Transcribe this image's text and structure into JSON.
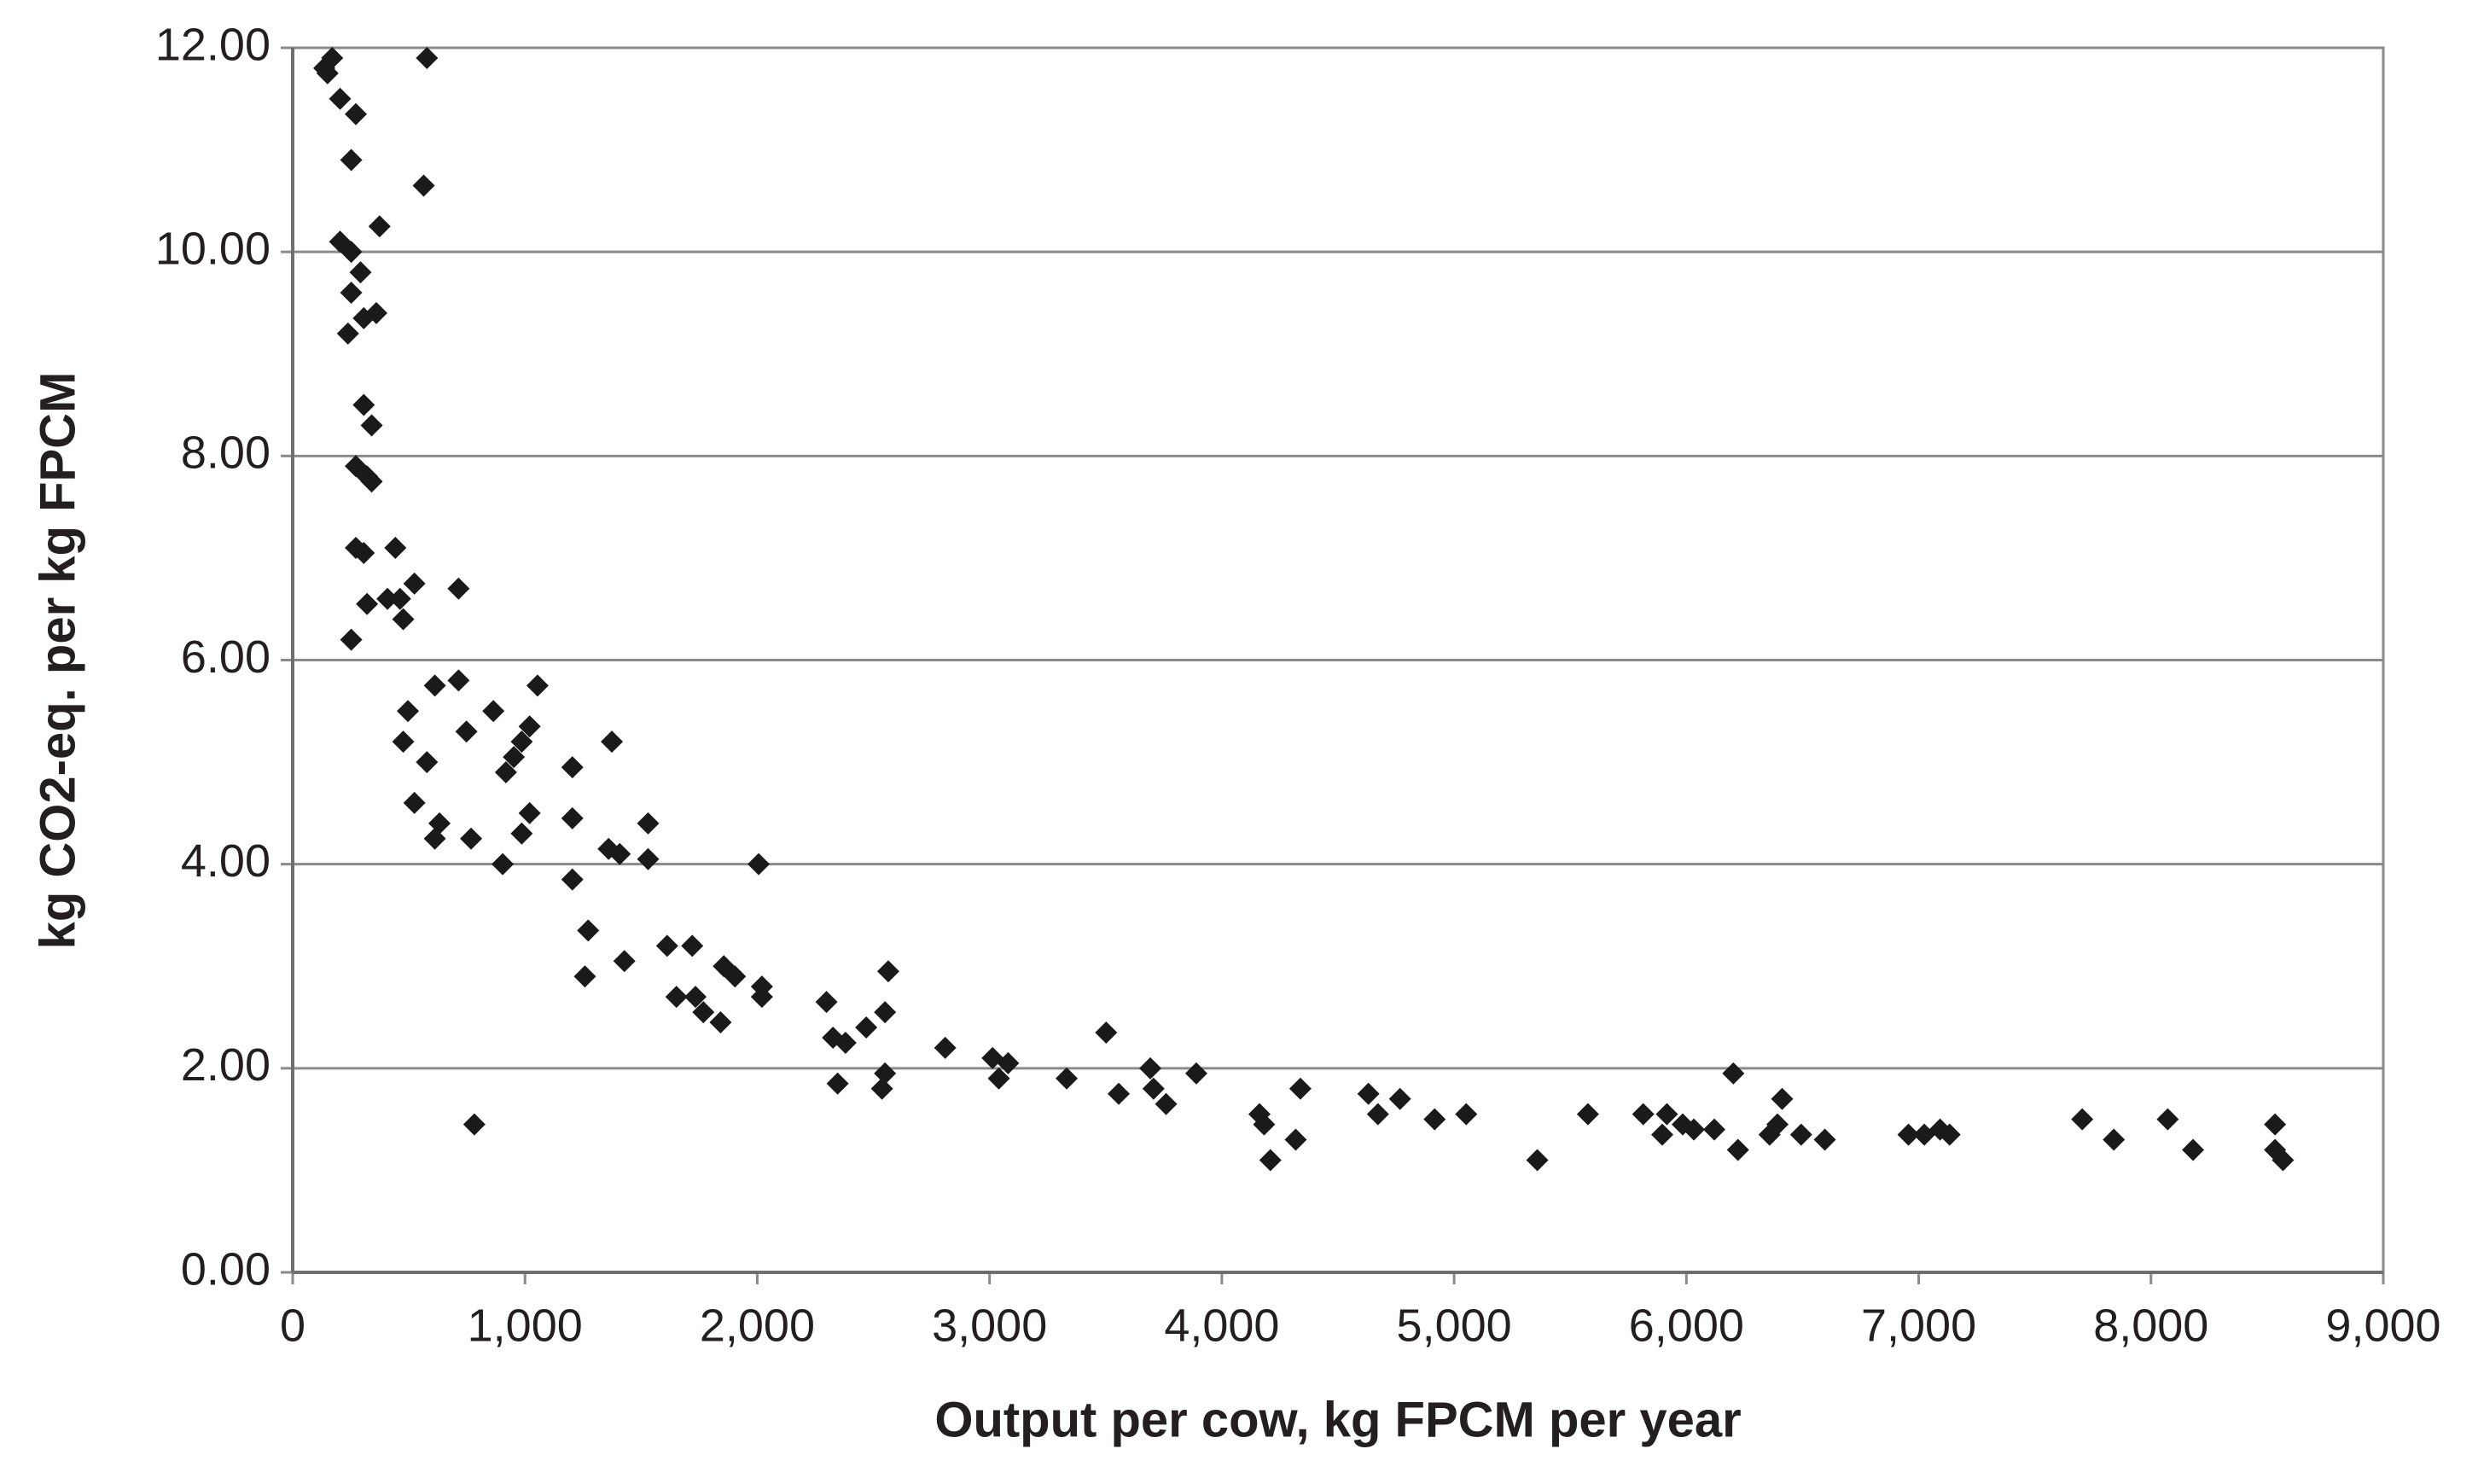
{
  "chart_data": {
    "type": "scatter",
    "x_label": "Output per cow, kg FPCM per year",
    "y_label": "kg CO2-eq. per kg FPCM",
    "xlim": [
      0,
      9000
    ],
    "xticks": [
      0,
      {
        "value": 1000,
        "label": "1,000"
      },
      {
        "value": 2000,
        "label": "2,000"
      },
      {
        "value": 3000,
        "label": "3,000"
      },
      {
        "value": 4000,
        "label": "4,000"
      },
      {
        "value": 5000,
        "label": "5,000"
      },
      {
        "value": 6000,
        "label": "6,000"
      },
      {
        "value": 7000,
        "label": "7,000"
      },
      {
        "value": 8000,
        "label": "8,000"
      },
      {
        "value": 9000,
        "label": "9,000"
      }
    ],
    "ylim": [
      0,
      12
    ],
    "yticks": [
      {
        "value": 0,
        "label": "0.00"
      },
      {
        "value": 2,
        "label": "2.00"
      },
      {
        "value": 4,
        "label": "4.00"
      },
      {
        "value": 6,
        "label": "6.00"
      },
      {
        "value": 8,
        "label": "8.00"
      },
      {
        "value": 10,
        "label": "10.00"
      },
      {
        "value": 12,
        "label": "12.00"
      }
    ],
    "grid": true,
    "color": "#1a1a1a",
    "x": [
      136,
      170,
      150,
      204,
      272,
      252,
      204,
      252,
      292,
      252,
      360,
      238,
      306,
      374,
      578,
      564,
      306,
      340,
      272,
      320,
      340,
      272,
      306,
      442,
      320,
      408,
      476,
      524,
      252,
      714,
      462,
      714,
      612,
      496,
      476,
      578,
      524,
      632,
      612,
      748,
      768,
      864,
      904,
      918,
      952,
      986,
      1020,
      1054,
      986,
      1020,
      1204,
      1204,
      1204,
      1374,
      1360,
      1408,
      1530,
      1530,
      1272,
      1258,
      1428,
      1612,
      1720,
      1652,
      1734,
      1768,
      1856,
      1904,
      1842,
      2020,
      2020,
      2006,
      2298,
      2326,
      2380,
      2469,
      2550,
      2564,
      2346,
      2550,
      2537,
      2809,
      3013,
      3040,
      3080,
      3332,
      3502,
      3556,
      3692,
      3706,
      3760,
      3890,
      4162,
      4182,
      4209,
      4338,
      4318,
      4631,
      4672,
      4767,
      4916,
      5052,
      5358,
      5576,
      5814,
      5896,
      5916,
      5984,
      6032,
      6120,
      6202,
      6222,
      6358,
      6412,
      6392,
      6494,
      6596,
      6956,
      7024,
      7092,
      7133,
      7704,
      7840,
      8072,
      8181,
      8534,
      8534,
      8568,
      782
    ],
    "values": [
      11.8,
      11.9,
      11.75,
      11.5,
      11.35,
      10.9,
      10.1,
      10.0,
      9.8,
      9.6,
      9.4,
      9.2,
      9.35,
      10.25,
      11.9,
      10.65,
      8.5,
      8.3,
      7.9,
      7.8,
      7.75,
      7.1,
      7.05,
      7.1,
      6.55,
      6.6,
      6.4,
      6.75,
      6.2,
      6.7,
      6.6,
      5.8,
      5.75,
      5.5,
      5.2,
      5.0,
      4.6,
      4.4,
      4.25,
      5.3,
      4.25,
      5.5,
      4.0,
      4.9,
      5.05,
      5.2,
      5.35,
      5.75,
      4.3,
      4.5,
      4.95,
      4.45,
      3.85,
      5.2,
      4.15,
      4.1,
      4.4,
      4.05,
      3.35,
      2.9,
      3.05,
      3.2,
      3.2,
      2.7,
      2.7,
      2.55,
      3.0,
      2.9,
      2.45,
      2.8,
      2.7,
      4.0,
      2.65,
      2.3,
      2.25,
      2.4,
      2.55,
      2.95,
      1.85,
      1.95,
      1.8,
      2.2,
      2.1,
      1.9,
      2.05,
      1.9,
      2.35,
      1.75,
      2.0,
      1.8,
      1.65,
      1.95,
      1.55,
      1.45,
      1.1,
      1.8,
      1.3,
      1.75,
      1.55,
      1.7,
      1.5,
      1.55,
      1.1,
      1.55,
      1.55,
      1.35,
      1.55,
      1.45,
      1.4,
      1.4,
      1.95,
      1.2,
      1.35,
      1.7,
      1.45,
      1.35,
      1.3,
      1.35,
      1.35,
      1.4,
      1.35,
      1.5,
      1.3,
      1.5,
      1.2,
      1.45,
      1.2,
      1.1,
      1.45
    ]
  }
}
